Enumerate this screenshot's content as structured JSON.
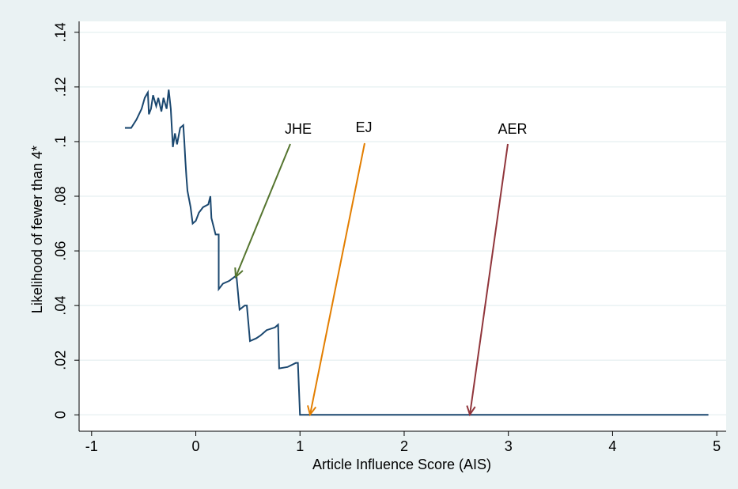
{
  "chart_data": {
    "type": "line",
    "xlabel": "Article Influence Score (AIS)",
    "ylabel": "Likelihood of fewer than 4*",
    "xlim": [
      -1.12,
      5.09
    ],
    "ylim": [
      -0.006,
      0.144
    ],
    "xticks": [
      -1,
      0,
      1,
      2,
      3,
      4,
      5
    ],
    "yticks": [
      0,
      {
        "value": 0.02,
        "label": ".02"
      },
      {
        "value": 0.04,
        "label": ".04"
      },
      {
        "value": 0.06,
        "label": ".06"
      },
      {
        "value": 0.08,
        "label": ".08"
      },
      {
        "value": 0.1,
        "label": ".1"
      },
      {
        "value": 0.12,
        "label": ".12"
      },
      {
        "value": 0.14,
        "label": ".14"
      }
    ],
    "grid": true,
    "x": [
      -0.68,
      -0.62,
      -0.57,
      -0.52,
      -0.49,
      -0.46,
      -0.45,
      -0.43,
      -0.41,
      -0.38,
      -0.36,
      -0.33,
      -0.31,
      -0.28,
      -0.26,
      -0.24,
      -0.22,
      -0.2,
      -0.18,
      -0.15,
      -0.12,
      -0.11,
      -0.1,
      -0.09,
      -0.08,
      -0.05,
      -0.03,
      0.0,
      0.03,
      0.07,
      0.12,
      0.14,
      0.15,
      0.17,
      0.19,
      0.22,
      0.22,
      0.26,
      0.32,
      0.39,
      0.42,
      0.47,
      0.49,
      0.52,
      0.58,
      0.62,
      0.68,
      0.76,
      0.79,
      0.8,
      0.88,
      0.96,
      0.98,
      1.0,
      4.92
    ],
    "series": [
      {
        "color": "#1a476f",
        "values": [
          0.105,
          0.105,
          0.108,
          0.112,
          0.116,
          0.118,
          0.11,
          0.112,
          0.117,
          0.113,
          0.116,
          0.111,
          0.116,
          0.112,
          0.119,
          0.112,
          0.098,
          0.103,
          0.099,
          0.105,
          0.106,
          0.1,
          0.093,
          0.087,
          0.082,
          0.076,
          0.07,
          0.071,
          0.074,
          0.076,
          0.077,
          0.08,
          0.072,
          0.069,
          0.066,
          0.066,
          0.046,
          0.048,
          0.049,
          0.051,
          0.0385,
          0.04,
          0.04,
          0.027,
          0.028,
          0.029,
          0.031,
          0.032,
          0.033,
          0.017,
          0.0175,
          0.019,
          0.019,
          0.0,
          0.0
        ]
      }
    ],
    "annotations": [
      {
        "text": "JHE",
        "color": "#55752f"
      },
      {
        "text": "EJ",
        "color": "#e37e00"
      },
      {
        "text": "AER",
        "color": "#90353b"
      }
    ]
  }
}
